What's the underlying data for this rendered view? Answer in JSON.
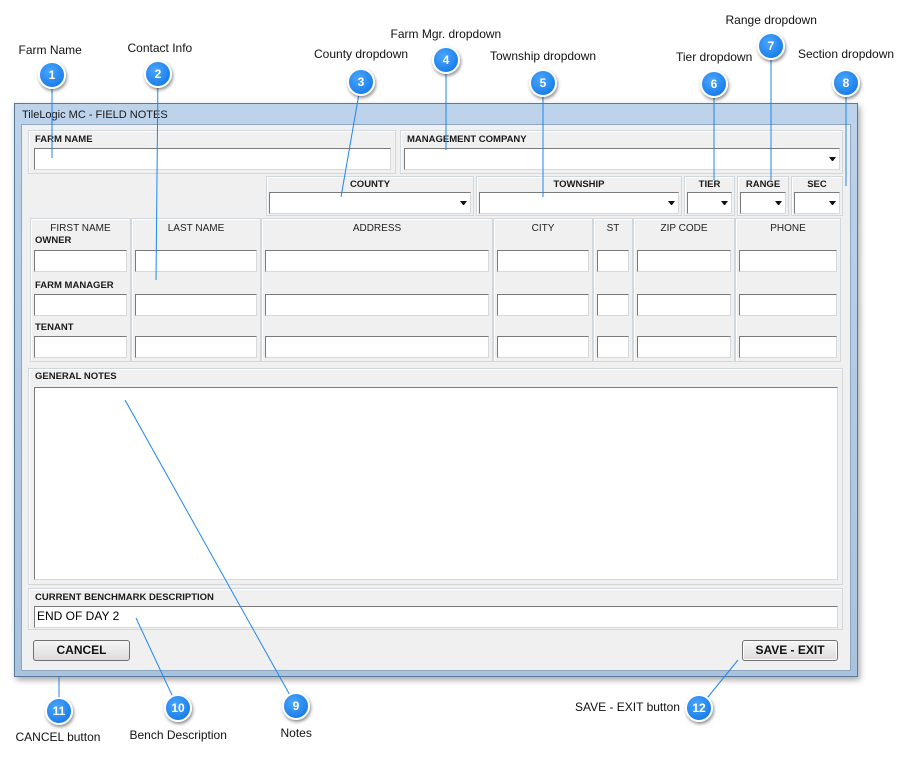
{
  "window": {
    "title": "TileLogic MC - FIELD NOTES"
  },
  "form": {
    "farm_name": "FARM NAME",
    "management_company": "MANAGEMENT COMPANY",
    "county": "COUNTY",
    "township": "TOWNSHIP",
    "tier": "TIER",
    "range": "RANGE",
    "sec": "SEC",
    "contact_columns": [
      "FIRST NAME",
      "LAST NAME",
      "ADDRESS",
      "CITY",
      "ST",
      "ZIP CODE",
      "PHONE"
    ],
    "contact_rows": [
      "OWNER",
      "FARM MANAGER",
      "TENANT"
    ],
    "general_notes": "GENERAL NOTES",
    "benchmark_label": "CURRENT BENCHMARK DESCRIPTION",
    "benchmark_value": "END OF DAY 2"
  },
  "buttons": {
    "cancel": "CANCEL",
    "save_exit": "SAVE - EXIT"
  },
  "callouts": [
    {
      "number": "1",
      "label": "Farm Name"
    },
    {
      "number": "2",
      "label": "Contact Info"
    },
    {
      "number": "3",
      "label": "County dropdown"
    },
    {
      "number": "4",
      "label": "Farm Mgr. dropdown"
    },
    {
      "number": "5",
      "label": "Township dropdown"
    },
    {
      "number": "6",
      "label": "Tier dropdown"
    },
    {
      "number": "7",
      "label": "Range dropdown"
    },
    {
      "number": "8",
      "label": "Section dropdown"
    },
    {
      "number": "9",
      "label": "Notes"
    },
    {
      "number": "10",
      "label": "Bench Description"
    },
    {
      "number": "11",
      "label": "CANCEL button"
    },
    {
      "number": "12",
      "label": "SAVE - EXIT button"
    }
  ]
}
